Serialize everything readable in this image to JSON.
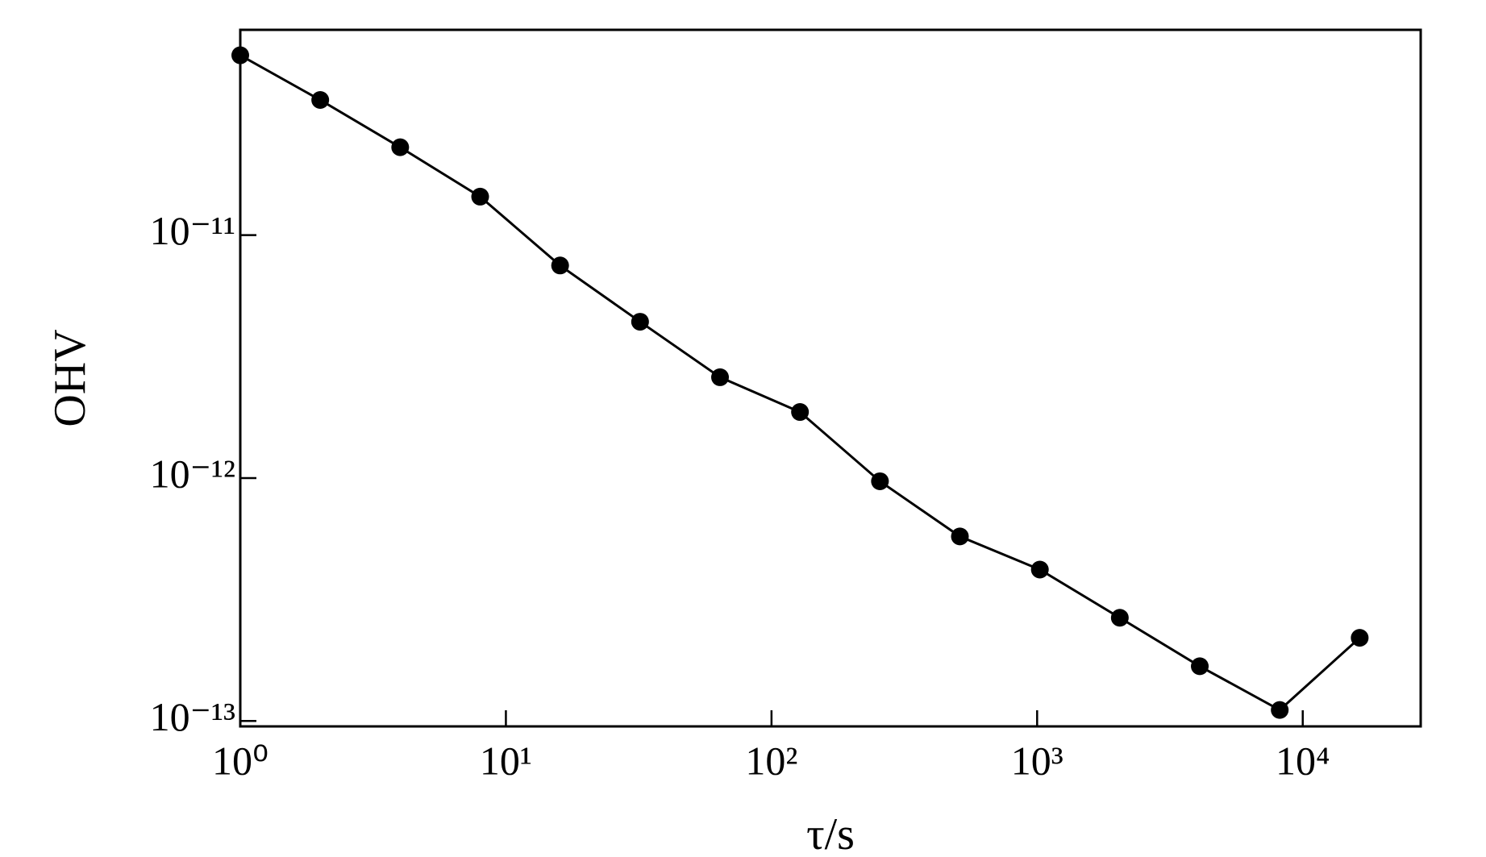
{
  "chart_data": {
    "type": "line",
    "xlabel": "τ/s",
    "ylabel": "OHV",
    "xlog": true,
    "ylog": true,
    "x": [
      1,
      2,
      4,
      8,
      16,
      32,
      64,
      128,
      256,
      512,
      1024,
      2048,
      4096,
      8192,
      16384
    ],
    "series": [
      {
        "name": "OHV",
        "color": "#000000",
        "values": [
          5.5e-11,
          3.6e-11,
          2.3e-11,
          1.44e-11,
          7.5e-12,
          4.4e-12,
          2.6e-12,
          1.87e-12,
          9.7e-13,
          5.75e-13,
          4.2e-13,
          2.66e-13,
          1.68e-13,
          1.11e-13,
          2.2e-13
        ]
      }
    ],
    "xlim": [
      1,
      27800
    ],
    "ylim": [
      9.5e-14,
      7e-11
    ],
    "xticks": [
      {
        "value": 1,
        "label": "10⁰"
      },
      {
        "value": 10,
        "label": "10¹"
      },
      {
        "value": 100,
        "label": "10²"
      },
      {
        "value": 1000,
        "label": "10³"
      },
      {
        "value": 10000,
        "label": "10⁴"
      }
    ],
    "yticks": [
      {
        "value": 1e-11,
        "label": "10⁻¹¹"
      },
      {
        "value": 1e-12,
        "label": "10⁻¹²"
      },
      {
        "value": 1e-13,
        "label": "10⁻¹³"
      }
    ]
  }
}
